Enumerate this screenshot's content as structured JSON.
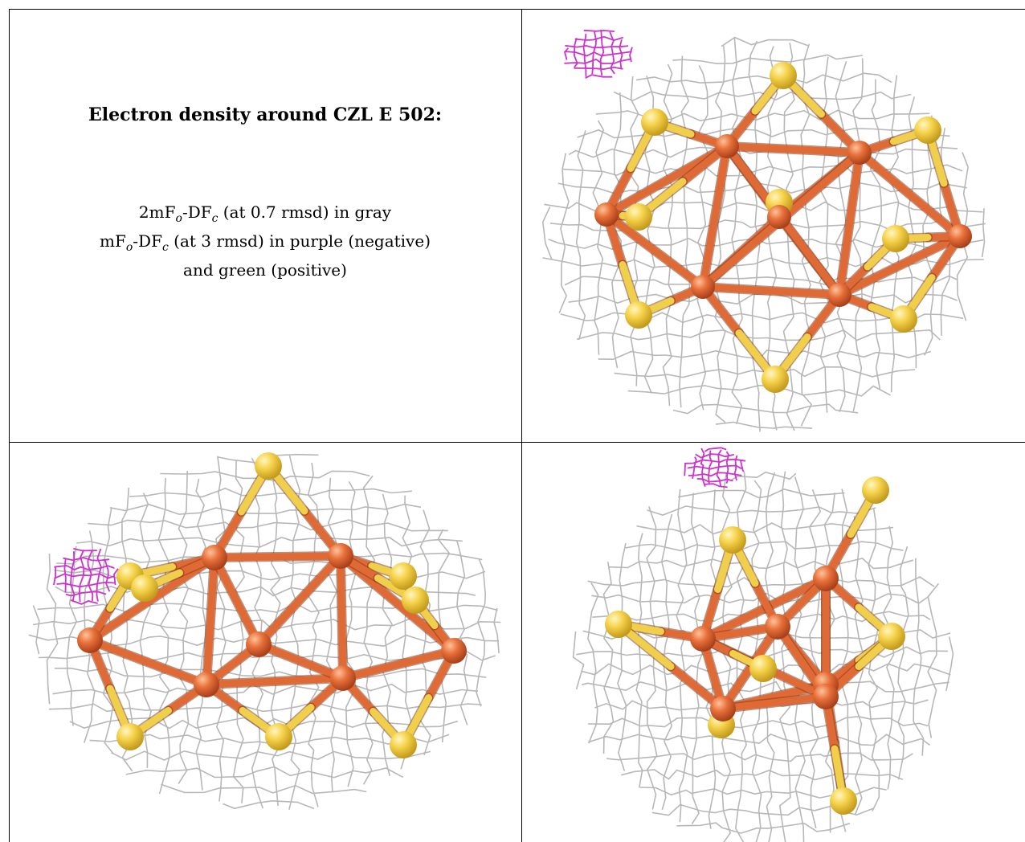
{
  "caption": {
    "title": "Electron density around CZL E 502:",
    "line1": {
      "prefix": "2mF",
      "sub1": "o",
      "mid": "-DF",
      "sub2": "c",
      "suffix": " (at 0.7 rmsd) in gray"
    },
    "line2": {
      "prefix": "mF",
      "sub1": "o",
      "mid": "-DF",
      "sub2": "c",
      "suffix": " (at 3 rmsd) in purple (negative)"
    },
    "line3": "and green (positive)"
  },
  "colors": {
    "mesh_gray": "#b0b0b0",
    "mesh_purple": "#cc33cc",
    "iron": "#e8703a",
    "sulfur": "#f5d24a",
    "bond_orange": "#e06a35",
    "bond_yellow": "#f0cf4a"
  },
  "views": [
    "top-right",
    "bottom-left",
    "bottom-right"
  ]
}
